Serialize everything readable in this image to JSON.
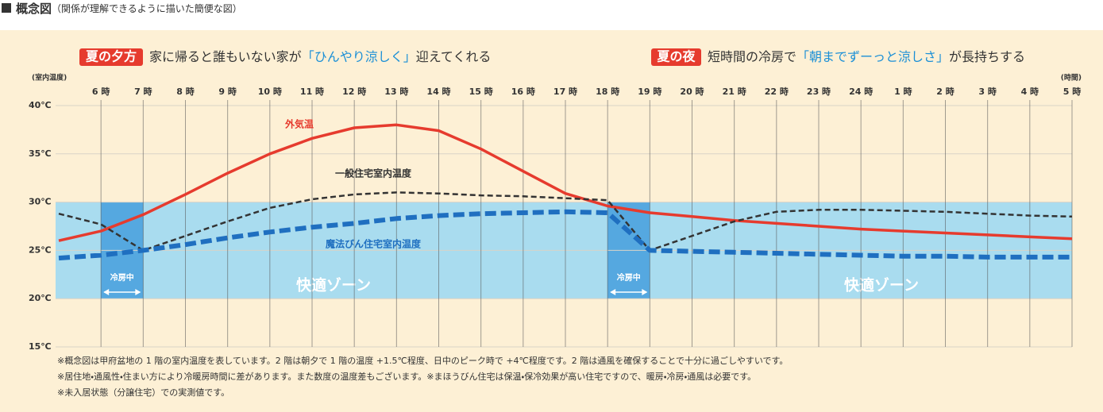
{
  "header": {
    "title": "概念図",
    "subtitle": "（関係が理解できるように描いた簡便な図）"
  },
  "headlines": [
    {
      "tag": "夏の夕方",
      "parts": [
        "家に帰ると誰もいない家が",
        "「ひんやり涼しく」",
        "迎えてくれる"
      ]
    },
    {
      "tag": "夏の夜",
      "parts": [
        "短時間の冷房で",
        "「朝までずーっと涼しさ」",
        "が長持ちする"
      ]
    }
  ],
  "chart_data": {
    "type": "line",
    "y_axis_label": "(室内温度)",
    "x_axis_label": "(時間)",
    "x": [
      5,
      6,
      7,
      8,
      9,
      10,
      11,
      12,
      13,
      14,
      15,
      16,
      17,
      18,
      19,
      20,
      21,
      22,
      23,
      24,
      25,
      26,
      27,
      28,
      29
    ],
    "xlim": [
      5,
      29
    ],
    "xticks": [
      {
        "value": 6,
        "label": "6 時"
      },
      {
        "value": 7,
        "label": "7 時"
      },
      {
        "value": 8,
        "label": "8 時"
      },
      {
        "value": 9,
        "label": "9 時"
      },
      {
        "value": 10,
        "label": "10 時"
      },
      {
        "value": 11,
        "label": "11 時"
      },
      {
        "value": 12,
        "label": "12 時"
      },
      {
        "value": 13,
        "label": "13 時"
      },
      {
        "value": 14,
        "label": "14 時"
      },
      {
        "value": 15,
        "label": "15 時"
      },
      {
        "value": 16,
        "label": "16 時"
      },
      {
        "value": 17,
        "label": "17 時"
      },
      {
        "value": 18,
        "label": "18 時"
      },
      {
        "value": 19,
        "label": "19 時"
      },
      {
        "value": 20,
        "label": "20 時"
      },
      {
        "value": 21,
        "label": "21 時"
      },
      {
        "value": 22,
        "label": "22 時"
      },
      {
        "value": 23,
        "label": "23 時"
      },
      {
        "value": 24,
        "label": "24 時"
      },
      {
        "value": 25,
        "label": "1 時"
      },
      {
        "value": 26,
        "label": "2 時"
      },
      {
        "value": 27,
        "label": "3 時"
      },
      {
        "value": 28,
        "label": "4 時"
      },
      {
        "value": 29,
        "label": "5 時"
      }
    ],
    "ylim": [
      15,
      40
    ],
    "yticks": [
      {
        "value": 15,
        "label": "15℃"
      },
      {
        "value": 20,
        "label": "20℃"
      },
      {
        "value": 25,
        "label": "25℃"
      },
      {
        "value": 30,
        "label": "30℃"
      },
      {
        "value": 35,
        "label": "35℃"
      },
      {
        "value": 40,
        "label": "40℃"
      }
    ],
    "grid": true,
    "comfort_zone": {
      "range": [
        20,
        30
      ],
      "color": "#a9dcef",
      "labels": [
        "快適ゾーン",
        "快適ゾーン"
      ]
    },
    "cooling": [
      {
        "start": 6,
        "end": 7,
        "label": "冷房中"
      },
      {
        "start": 18,
        "end": 19,
        "label": "冷房中"
      }
    ],
    "cooling_color": "#55a8e0",
    "series": [
      {
        "name": "外気温",
        "color": "#e63b2e",
        "style": "solid",
        "values": [
          26,
          27,
          28.7,
          30.8,
          33,
          35,
          36.6,
          37.7,
          38,
          37.4,
          35.5,
          33.2,
          30.9,
          29.6,
          28.9,
          28.5,
          28.1,
          27.8,
          27.5,
          27.2,
          27,
          26.8,
          26.6,
          26.4,
          26.2
        ]
      },
      {
        "name": "一般住宅室内温度",
        "color": "#333333",
        "style": "dashed",
        "values": [
          28.8,
          27.7,
          25,
          26.5,
          28,
          29.4,
          30.3,
          30.8,
          31,
          30.9,
          30.7,
          30.6,
          30.4,
          30.2,
          25,
          26.5,
          28,
          29,
          29.2,
          29.2,
          29.1,
          29,
          28.8,
          28.6,
          28.5
        ]
      },
      {
        "name": "魔法びん住宅室内温度",
        "color": "#1f6fc0",
        "style": "thick-dashed",
        "values": [
          24.2,
          24.5,
          25,
          25.6,
          26.3,
          26.9,
          27.4,
          27.8,
          28.3,
          28.6,
          28.8,
          28.9,
          29,
          28.9,
          25,
          24.9,
          24.8,
          24.7,
          24.6,
          24.5,
          24.4,
          24.4,
          24.3,
          24.3,
          24.3
        ]
      }
    ]
  },
  "footnotes": [
    "※概念図は甲府盆地の 1 階の室内温度を表しています。2 階は朝夕で 1 階の温度 +1.5℃程度、日中のピーク時で +4℃程度です。2 階は通風を確保することで十分に過ごしやすいです。",
    "※居住地・通風性・住まい方により冷暖房時間に差があります。また数度の温度差もございます。※まほうびん住宅は保温・保冷効果が高い住宅ですので、暖房・冷房・通風は必要です。",
    "※未入居状態（分譲住宅）での実測値です。"
  ]
}
